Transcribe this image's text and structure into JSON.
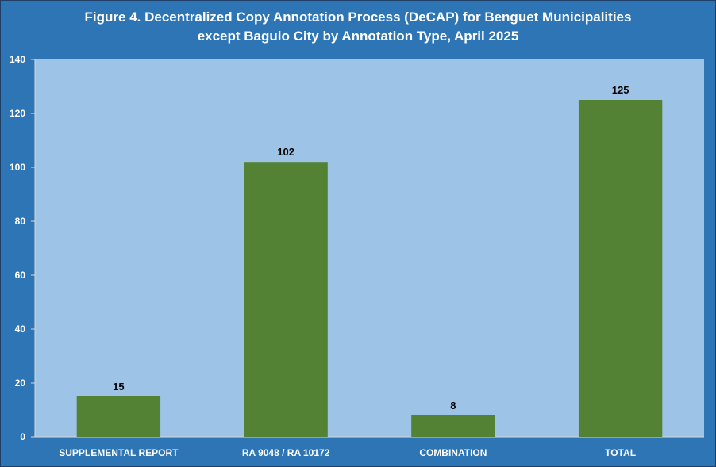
{
  "title": {
    "line1": "Figure 4. Decentralized Copy Annotation Process (DeCAP) for Benguet Municipalities",
    "line2": "except Baguio City by Annotation Type, April 2025"
  },
  "colors": {
    "background": "#2e75b6",
    "plot_area": "#9dc3e6",
    "bar": "#548235",
    "text": "#ffffff"
  },
  "chart_data": {
    "type": "bar",
    "title": "Figure 4. Decentralized Copy Annotation Process (DeCAP) for Benguet Municipalities except Baguio City by Annotation Type, April 2025",
    "categories": [
      "SUPPLEMENTAL REPORT",
      "RA 9048 / RA 10172",
      "COMBINATION",
      "TOTAL"
    ],
    "values": [
      15,
      102,
      8,
      125
    ],
    "data_labels": [
      "15",
      "102",
      "8",
      "125"
    ],
    "xlabel": "",
    "ylabel": "",
    "ylim": [
      0,
      140
    ],
    "yticks": [
      0,
      20,
      40,
      60,
      80,
      100,
      120,
      140
    ],
    "grid": false,
    "legend": "none"
  }
}
